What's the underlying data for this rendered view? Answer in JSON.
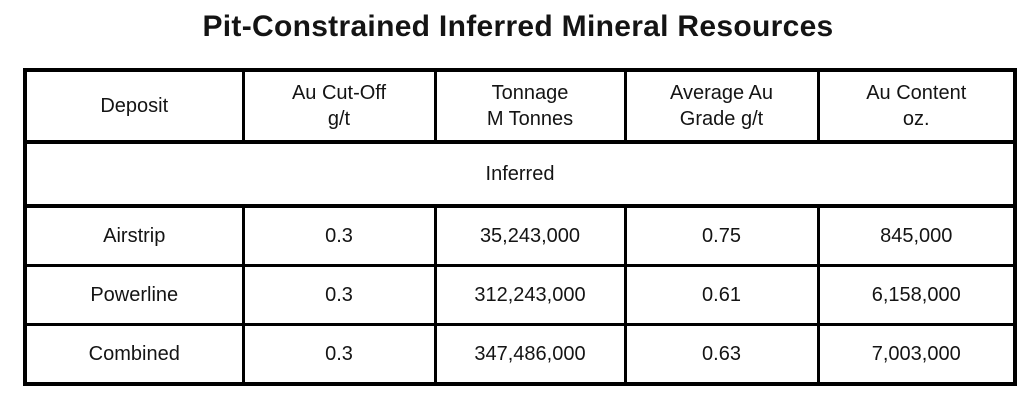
{
  "title": "Pit-Constrained Inferred Mineral Resources",
  "table": {
    "columns": [
      {
        "line1": "Deposit"
      },
      {
        "line1": "Au Cut-Off",
        "line2": "g/t"
      },
      {
        "line1": "Tonnage",
        "line2": "M Tonnes"
      },
      {
        "line1": "Average Au",
        "line2": "Grade g/t"
      },
      {
        "line1": "Au Content",
        "line2": "oz."
      }
    ],
    "section_label": "Inferred",
    "rows": [
      {
        "cells": [
          "Airstrip",
          "0.3",
          "35,243,000",
          "0.75",
          "845,000"
        ]
      },
      {
        "cells": [
          "Powerline",
          "0.3",
          "312,243,000",
          "0.61",
          "6,158,000"
        ]
      },
      {
        "cells": [
          "Combined",
          "0.3",
          "347,486,000",
          "0.63",
          "7,003,000"
        ]
      }
    ]
  },
  "chart_data": {
    "type": "table",
    "title": "Pit-Constrained Inferred Mineral Resources",
    "columns": [
      "Deposit",
      "Au Cut-Off g/t",
      "Tonnage M Tonnes",
      "Average Au Grade g/t",
      "Au Content oz."
    ],
    "section": "Inferred",
    "rows": [
      [
        "Airstrip",
        0.3,
        35243000,
        0.75,
        845000
      ],
      [
        "Powerline",
        0.3,
        312243000,
        0.61,
        6158000
      ],
      [
        "Combined",
        0.3,
        347486000,
        0.63,
        7003000
      ]
    ]
  },
  "colors": {
    "text": "#141414",
    "border": "#000000",
    "background": "#ffffff"
  }
}
